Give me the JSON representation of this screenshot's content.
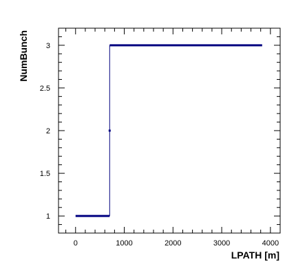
{
  "chart_data": {
    "type": "line",
    "xlabel": "LPATH [m]",
    "ylabel": "NumBunch",
    "xlim": [
      -350,
      4200
    ],
    "ylim": [
      0.8,
      3.2
    ],
    "xticks": [
      0,
      1000,
      2000,
      3000,
      4000
    ],
    "yticks": [
      1,
      1.5,
      2,
      2.5,
      3
    ],
    "ytick_labels": [
      "1",
      "1.5",
      "2",
      "2.5",
      "3"
    ],
    "grid": false,
    "series": [
      {
        "color": "#000080",
        "x": [
          0,
          700,
          700,
          3830
        ],
        "y": [
          1,
          1,
          3,
          3
        ],
        "marker_points": [
          {
            "x": 700,
            "y": 2
          }
        ]
      }
    ]
  }
}
